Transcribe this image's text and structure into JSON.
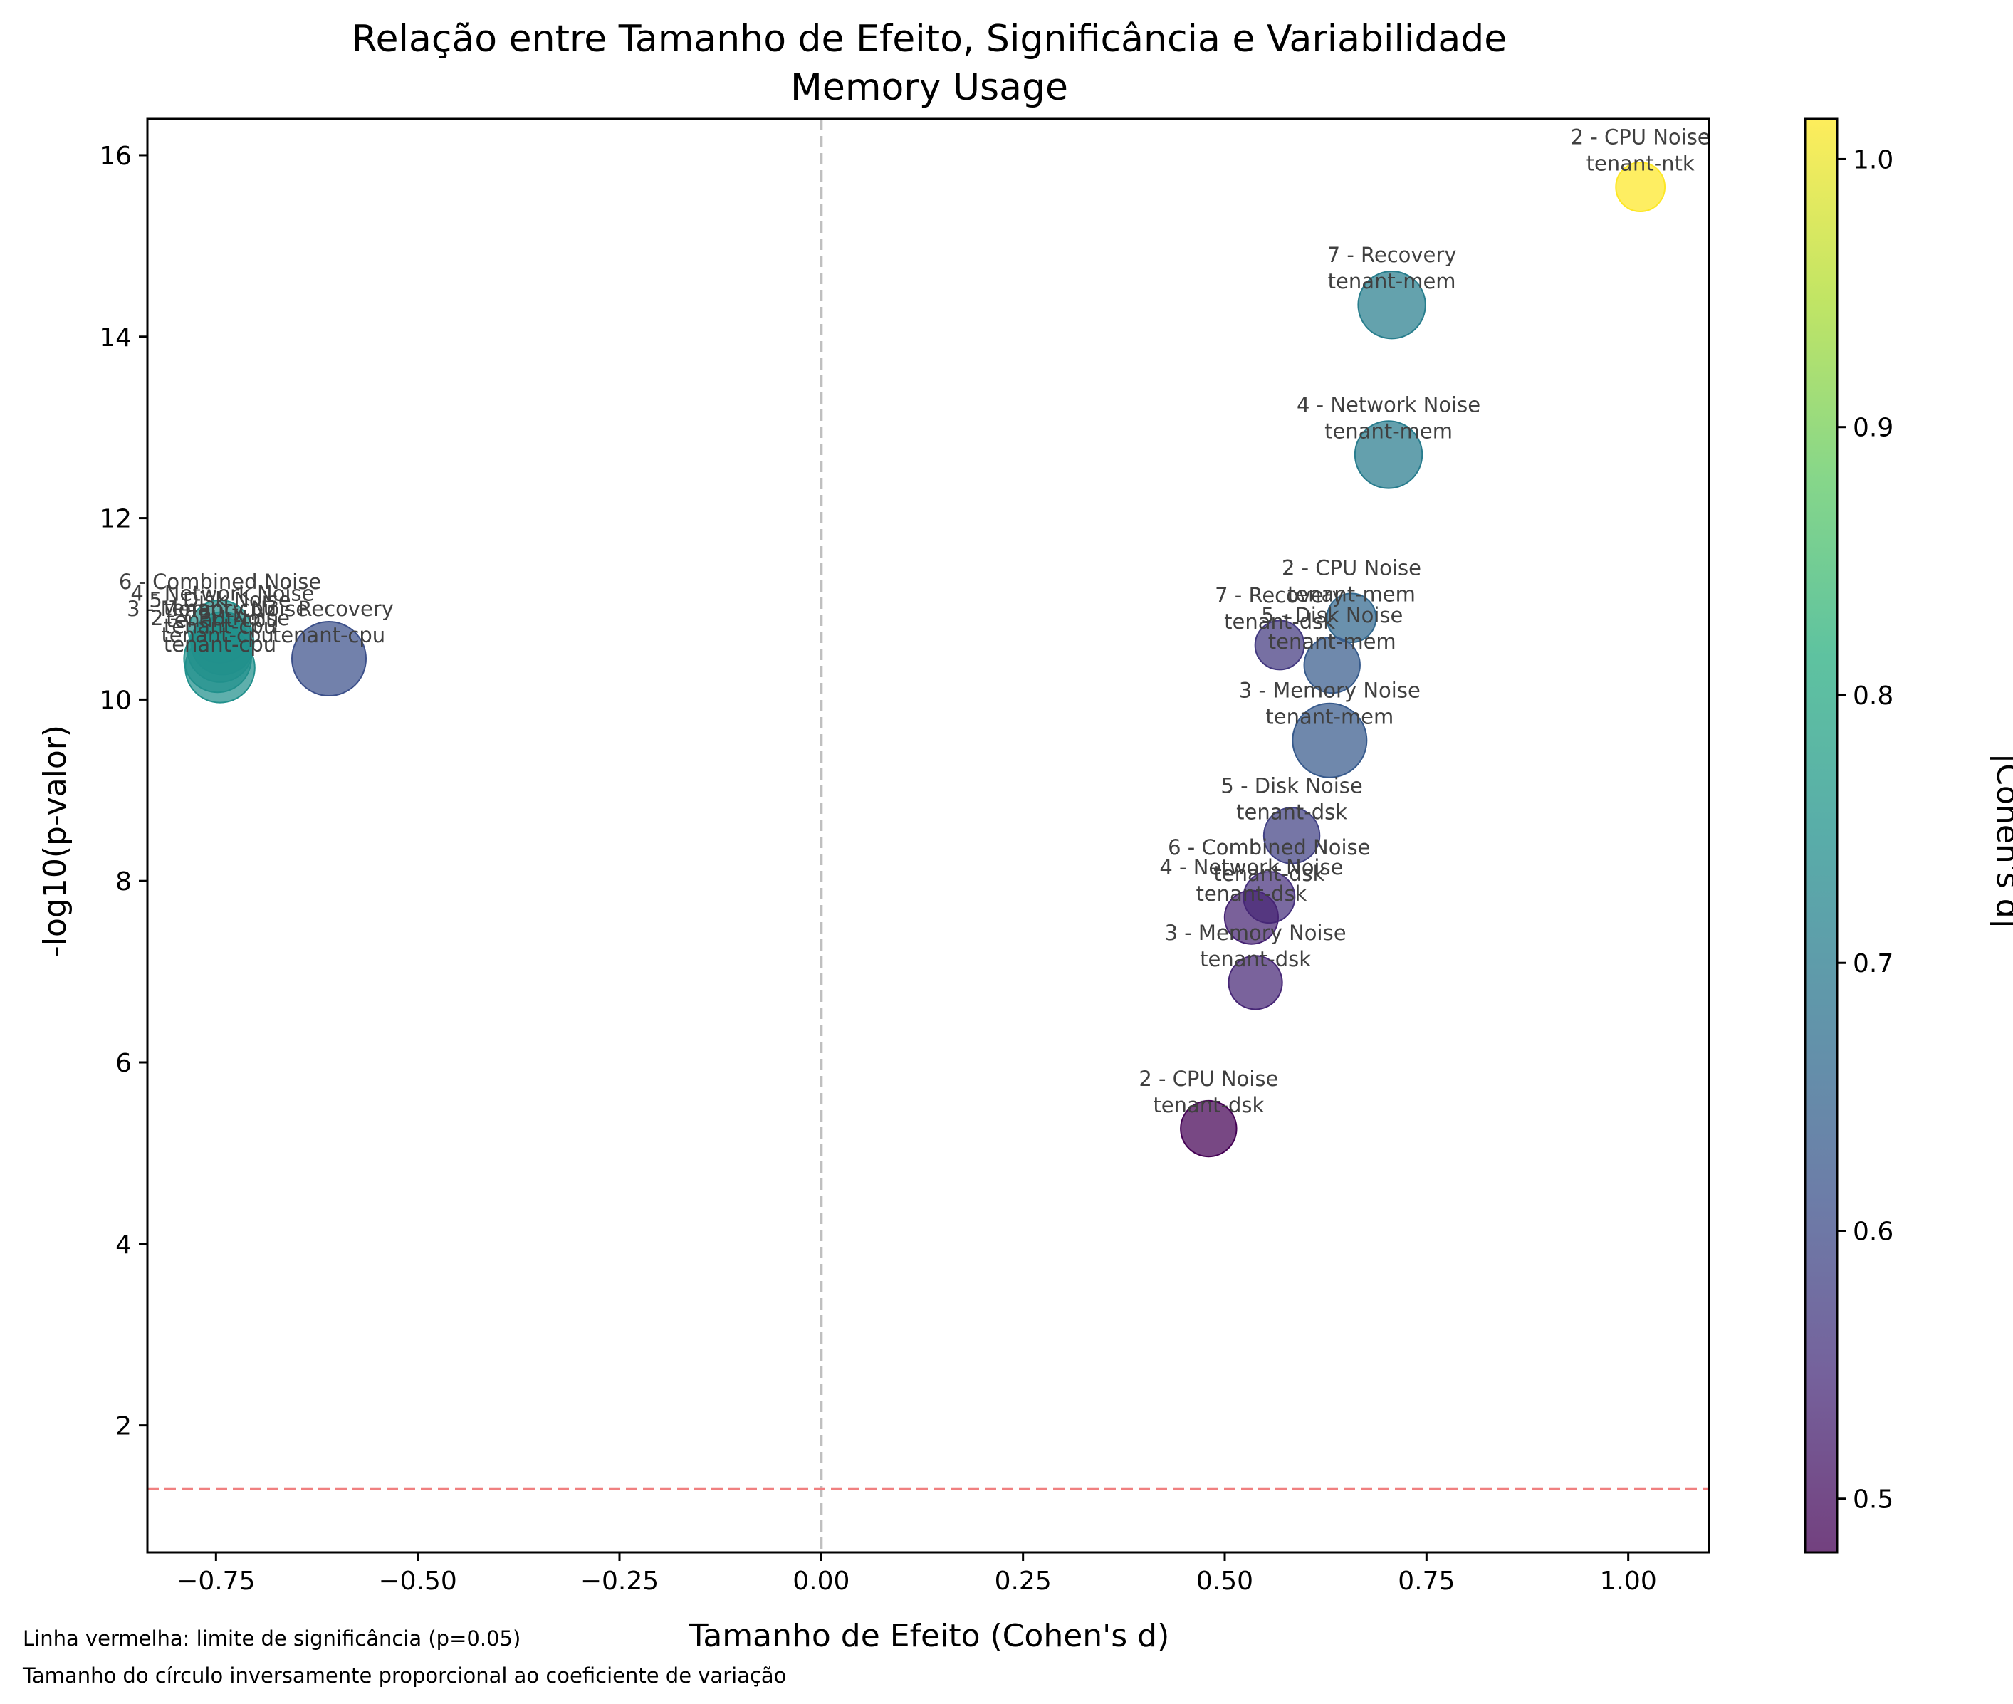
{
  "chart_data": {
    "type": "scatter",
    "title": "Relação entre Tamanho de Efeito, Significância e Variabilidade",
    "subtitle": "Memory Usage",
    "xlabel": "Tamanho de Efeito (Cohen's d)",
    "ylabel": "-log10(p-valor)",
    "xlim": [
      -0.835,
      1.1
    ],
    "ylim": [
      0.6,
      16.4
    ],
    "xticks": [
      "−0.75",
      "−0.50",
      "−0.25",
      "0.00",
      "0.25",
      "0.50",
      "0.75",
      "1.00"
    ],
    "xtick_values": [
      -0.75,
      -0.5,
      -0.25,
      0.0,
      0.25,
      0.5,
      0.75,
      1.0
    ],
    "yticks": [
      "2",
      "4",
      "6",
      "8",
      "10",
      "12",
      "14",
      "16"
    ],
    "ytick_values": [
      2,
      4,
      6,
      8,
      10,
      12,
      14,
      16
    ],
    "grid": false,
    "significance_line": {
      "y": 1.301,
      "color": "#f08080",
      "style": "dashed"
    },
    "zero_line": {
      "x": 0,
      "color": "#bfbfbf",
      "style": "dashed"
    },
    "colorbar": {
      "label": "|Cohen's d|",
      "range": [
        0.48,
        1.015
      ],
      "ticks": [
        "0.5",
        "0.6",
        "0.7",
        "0.8",
        "0.9",
        "1.0"
      ],
      "tick_values": [
        0.5,
        0.6,
        0.7,
        0.8,
        0.9,
        1.0
      ],
      "colormap": "viridis"
    },
    "points": [
      {
        "phase": "2 - CPU Noise",
        "tenant": "tenant-ntk",
        "x": 1.015,
        "y": 15.65,
        "size_rel": 0.45
      },
      {
        "phase": "7 - Recovery",
        "tenant": "tenant-mem",
        "x": 0.707,
        "y": 14.35,
        "size_rel": 0.85
      },
      {
        "phase": "4 - Network Noise",
        "tenant": "tenant-mem",
        "x": 0.703,
        "y": 12.7,
        "size_rel": 0.85
      },
      {
        "phase": "2 - CPU Noise",
        "tenant": "tenant-mem",
        "x": 0.657,
        "y": 10.9,
        "size_rel": 0.45
      },
      {
        "phase": "7 - Recovery",
        "tenant": "tenant-dsk",
        "x": 0.568,
        "y": 10.6,
        "size_rel": 0.45
      },
      {
        "phase": "5 - Disk Noise",
        "tenant": "tenant-mem",
        "x": 0.633,
        "y": 10.38,
        "size_rel": 0.6
      },
      {
        "phase": "3 - Memory Noise",
        "tenant": "tenant-mem",
        "x": 0.63,
        "y": 9.55,
        "size_rel": 1.0
      },
      {
        "phase": "5 - Disk Noise",
        "tenant": "tenant-dsk",
        "x": 0.583,
        "y": 8.5,
        "size_rel": 0.6
      },
      {
        "phase": "6 - Combined Noise",
        "tenant": "tenant-dsk",
        "x": 0.555,
        "y": 7.82,
        "size_rel": 0.5
      },
      {
        "phase": "4 - Network Noise",
        "tenant": "tenant-dsk",
        "x": 0.533,
        "y": 7.6,
        "size_rel": 0.55
      },
      {
        "phase": "3 - Memory Noise",
        "tenant": "tenant-dsk",
        "x": 0.538,
        "y": 6.88,
        "size_rel": 0.55
      },
      {
        "phase": "2 - CPU Noise",
        "tenant": "tenant-dsk",
        "x": 0.48,
        "y": 5.27,
        "size_rel": 0.6
      },
      {
        "phase": "6 - Combined Noise",
        "tenant": "tenant-cpu",
        "x": -0.745,
        "y": 10.75,
        "size_rel": 0.75
      },
      {
        "phase": "4 - Network Noise",
        "tenant": "tenant-cpu",
        "x": -0.742,
        "y": 10.62,
        "size_rel": 0.75
      },
      {
        "phase": "5 - Disk Noise",
        "tenant": "tenant-cpu",
        "x": -0.745,
        "y": 10.55,
        "size_rel": 0.8
      },
      {
        "phase": "3 - Memory Noise",
        "tenant": "tenant-cpu",
        "x": -0.748,
        "y": 10.45,
        "size_rel": 0.85
      },
      {
        "phase": "2 - CPU Noise",
        "tenant": "tenant-cpu",
        "x": -0.745,
        "y": 10.35,
        "size_rel": 0.9
      },
      {
        "phase": "7 - Recovery",
        "tenant": "tenant-cpu",
        "x": -0.61,
        "y": 10.45,
        "size_rel": 1.0
      }
    ],
    "footnotes": [
      "Linha vermelha: limite de significância (p=0.05)",
      "Tamanho do círculo inversamente proporcional ao coeficiente de variação"
    ]
  }
}
